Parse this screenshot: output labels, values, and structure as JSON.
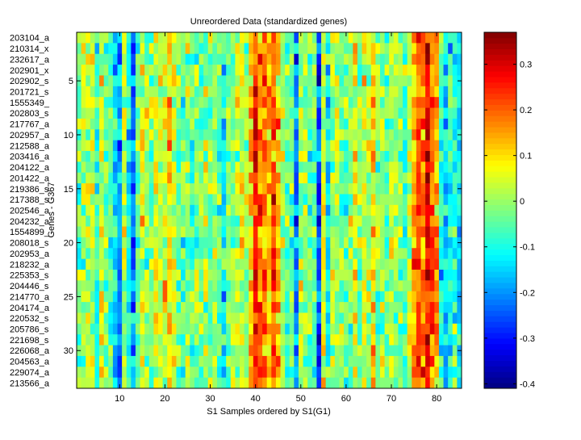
{
  "chart_data": {
    "type": "heatmap",
    "title": "Unreordered Data (standardized genes)",
    "xlabel": "S1 Samples ordered by S1(G1)",
    "ylabel": "Genes - G367",
    "xlim": [
      0.5,
      85.5
    ],
    "ylim": [
      0.5,
      33.5
    ],
    "x_ticks": [
      10,
      20,
      30,
      40,
      50,
      60,
      70,
      80
    ],
    "y_ticks": [
      5,
      10,
      15,
      20,
      25,
      30
    ],
    "row_labels": [
      "203104_a",
      "210314_x",
      "232617_a",
      "202901_x",
      "202902_s",
      "201721_s",
      "1555349_",
      "202803_s",
      "217767_a",
      "202957_a",
      "212588_a",
      "203416_a",
      "204122_a",
      "201422_a",
      "219386_s",
      "217388_s",
      "202546_a",
      "204232_a",
      "1554899_",
      "208018_s",
      "202953_a",
      "218232_a",
      "225353_s",
      "204446_s",
      "214770_a",
      "204174_a",
      "220532_s",
      "205786_s",
      "221698_s",
      "226068_a",
      "204563_a",
      "229074_a",
      "213566_a"
    ],
    "n_columns": 85,
    "column_means": [
      -0.03,
      0.0,
      0.02,
      0.03,
      -0.1,
      0.05,
      -0.02,
      -0.04,
      -0.12,
      -0.18,
      0.02,
      -0.1,
      -0.2,
      -0.05,
      0.02,
      0.0,
      -0.02,
      0.05,
      0.03,
      0.04,
      0.1,
      0.06,
      -0.04,
      -0.06,
      0.0,
      -0.05,
      -0.02,
      -0.03,
      0.0,
      -0.03,
      0.02,
      -0.05,
      -0.1,
      -0.02,
      0.0,
      0.02,
      0.05,
      0.0,
      0.12,
      0.25,
      0.2,
      0.18,
      0.1,
      0.2,
      0.12,
      0.0,
      -0.05,
      -0.03,
      -0.2,
      0.02,
      0.0,
      -0.03,
      -0.05,
      -0.25,
      0.05,
      -0.12,
      0.0,
      0.02,
      -0.02,
      -0.05,
      0.0,
      0.05,
      -0.02,
      0.03,
      0.0,
      0.1,
      -0.03,
      0.0,
      -0.05,
      0.02,
      0.0,
      -0.03,
      -0.05,
      0.03,
      0.15,
      0.22,
      0.18,
      0.3,
      0.2,
      0.15,
      -0.1,
      -0.15,
      -0.1,
      -0.08,
      -0.12
    ],
    "value_noise_sd": 0.06,
    "colormap": "jet",
    "colorbar": {
      "range": [
        -0.41,
        0.37
      ],
      "ticks": [
        0.3,
        0.2,
        0.1,
        0,
        -0.1,
        -0.2,
        -0.3,
        -0.4
      ],
      "tick_labels": [
        "0.3",
        "0.2",
        "0.1",
        "0",
        "-0.1",
        "-0.2",
        "-0.3",
        "-0.4"
      ]
    }
  }
}
